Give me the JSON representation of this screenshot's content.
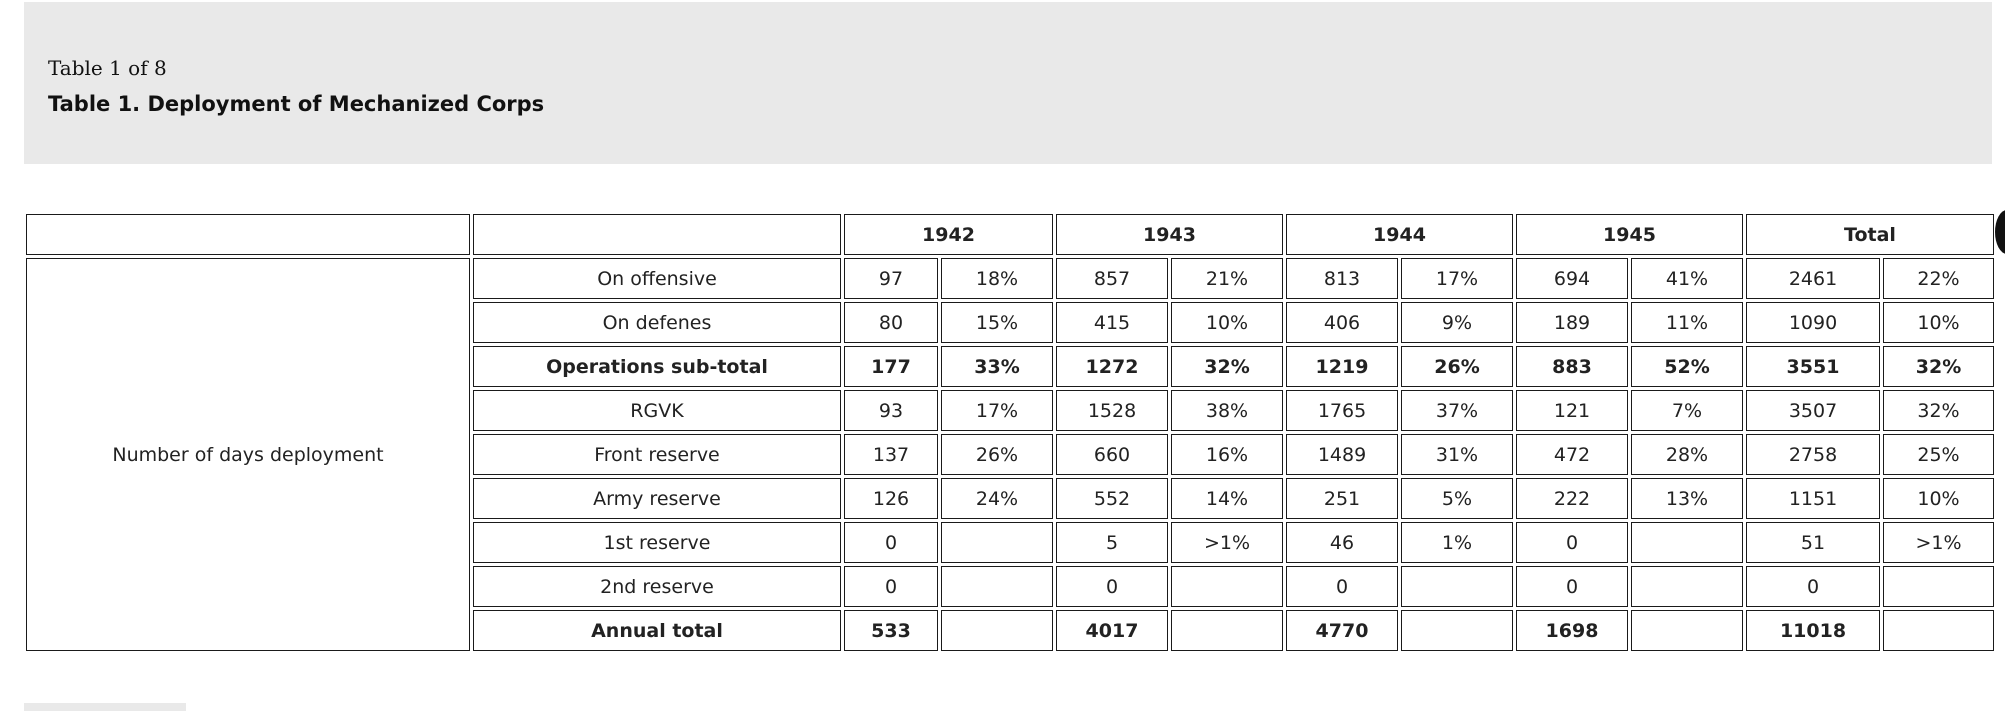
{
  "caption": {
    "counter": "Table 1 of 8",
    "title": "Table 1. Deployment of Mechanized Corps"
  },
  "table": {
    "header": {
      "blank_1": "",
      "blank_2": "",
      "years": [
        "1942",
        "1943",
        "1944",
        "1945",
        "Total"
      ]
    },
    "row_group_label": "Number of days deployment",
    "rows": [
      {
        "label": "On offensive",
        "bold": false,
        "cells": [
          "97",
          "18%",
          "857",
          "21%",
          "813",
          "17%",
          "694",
          "41%",
          "2461",
          "22%"
        ]
      },
      {
        "label": "On defenes",
        "bold": false,
        "cells": [
          "80",
          "15%",
          "415",
          "10%",
          "406",
          "9%",
          "189",
          "11%",
          "1090",
          "10%"
        ]
      },
      {
        "label": "Operations sub-total",
        "bold": true,
        "cells": [
          "177",
          "33%",
          "1272",
          "32%",
          "1219",
          "26%",
          "883",
          "52%",
          "3551",
          "32%"
        ]
      },
      {
        "label": "RGVK",
        "bold": false,
        "cells": [
          "93",
          "17%",
          "1528",
          "38%",
          "1765",
          "37%",
          "121",
          "7%",
          "3507",
          "32%"
        ]
      },
      {
        "label": "Front reserve",
        "bold": false,
        "cells": [
          "137",
          "26%",
          "660",
          "16%",
          "1489",
          "31%",
          "472",
          "28%",
          "2758",
          "25%"
        ]
      },
      {
        "label": "Army reserve",
        "bold": false,
        "cells": [
          "126",
          "24%",
          "552",
          "14%",
          "251",
          "5%",
          "222",
          "13%",
          "1151",
          "10%"
        ]
      },
      {
        "label": "1st reserve",
        "bold": false,
        "cells": [
          "0",
          "",
          "5",
          ">1%",
          "46",
          "1%",
          "0",
          "",
          "51",
          ">1%"
        ]
      },
      {
        "label": "2nd reserve",
        "bold": false,
        "cells": [
          "0",
          "",
          "0",
          "",
          "0",
          "",
          "0",
          "",
          "0",
          ""
        ]
      },
      {
        "label": "Annual total",
        "bold": true,
        "cells": [
          "533",
          "",
          "4017",
          "",
          "4770",
          "",
          "1698",
          "",
          "11018",
          ""
        ]
      }
    ]
  }
}
